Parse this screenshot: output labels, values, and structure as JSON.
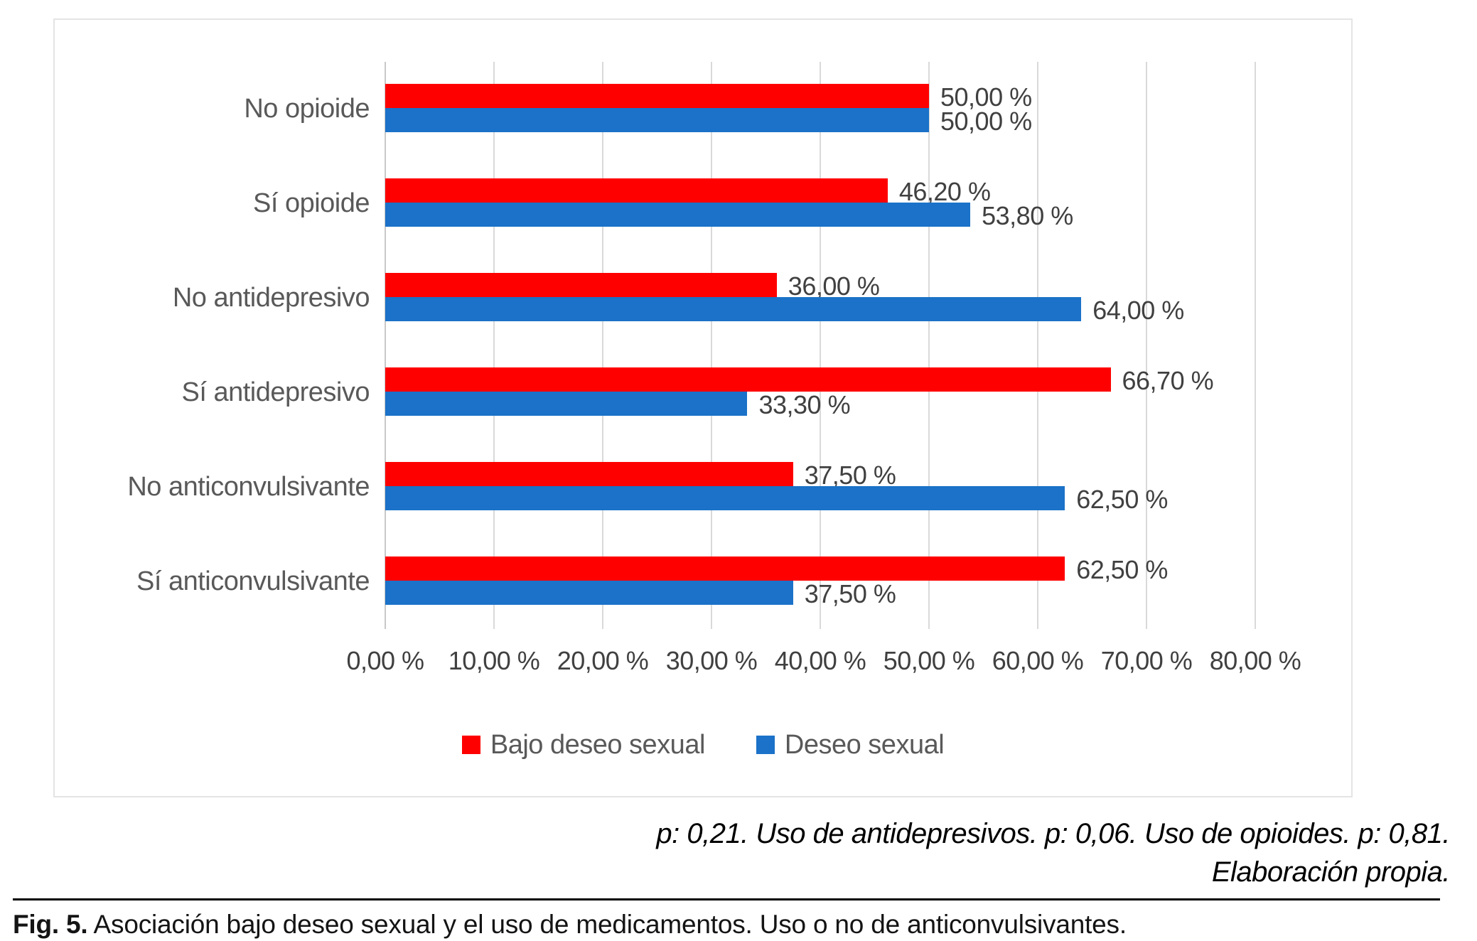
{
  "chart_data": {
    "type": "bar",
    "orientation": "horizontal",
    "title": "",
    "xlabel": "",
    "ylabel": "",
    "grid": true,
    "categories": [
      "No opioide",
      "Sí opioide",
      "No antidepresivo",
      "Sí antidepresivo",
      "No anticonvulsivante",
      "Sí anticonvulsivante"
    ],
    "series": [
      {
        "name": "Bajo deseo sexual",
        "color": "#ff0000",
        "values": [
          50.0,
          46.2,
          36.0,
          66.7,
          37.5,
          62.5
        ],
        "labels": [
          "50,00 %",
          "46,20 %",
          "36,00 %",
          "66,70 %",
          "37,50 %",
          "62,50 %"
        ]
      },
      {
        "name": "Deseo sexual",
        "color": "#1b72c8",
        "values": [
          50.0,
          53.8,
          64.0,
          33.3,
          62.5,
          37.5
        ],
        "labels": [
          "50,00 %",
          "53,80 %",
          "64,00 %",
          "33,30 %",
          "62,50 %",
          "37,50 %"
        ]
      }
    ],
    "x_axis": {
      "min": 0,
      "max": 80,
      "tick_step": 10,
      "tick_labels": [
        "0,00 %",
        "10,00 %",
        "20,00 %",
        "30,00 %",
        "40,00 %",
        "50,00 %",
        "60,00 %",
        "70,00 %",
        "80,00 %"
      ]
    },
    "legend": {
      "position": "bottom"
    }
  },
  "notes": {
    "line1": "p: 0,21. Uso de antidepresivos. p: 0,06. Uso de opioides. p: 0,81.",
    "line2": "Elaboración propia."
  },
  "caption": {
    "label": "Fig. 5.",
    "text": " Asociación bajo deseo sexual y el uso de medicamentos. Uso o no de anticonvulsivantes."
  },
  "colors": {
    "bar_low_desire": "#ff0000",
    "bar_desire": "#1b72c8",
    "gridline": "#d9d9d9",
    "category_text": "#595959",
    "value_text": "#404040",
    "frame_border": "#e4e4e4",
    "rule": "#000000"
  }
}
